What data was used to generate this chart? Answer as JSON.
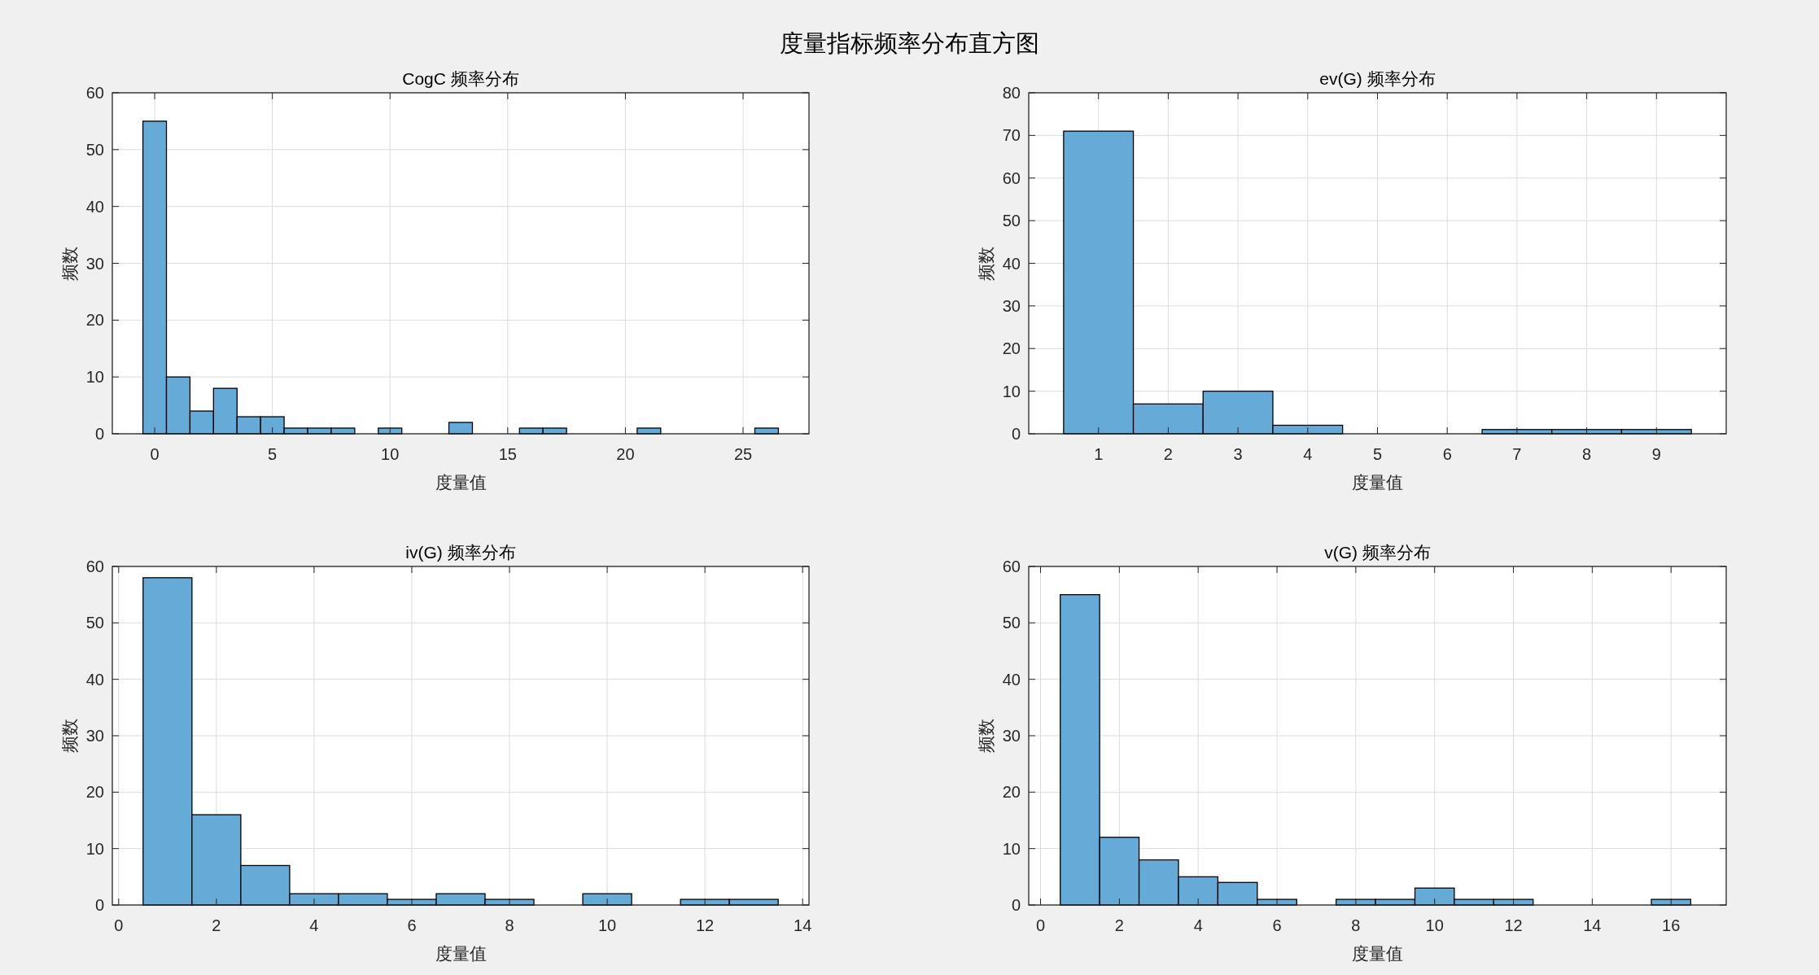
{
  "chart_data": [
    {
      "type": "histogram",
      "title": "CogC 频率分布",
      "xlabel": "度量值",
      "ylabel": "频数",
      "annotations": [
        "度量指标频率分布直方图"
      ],
      "color": "#66aad7",
      "grid": true,
      "bins": [
        -0.5,
        0.5,
        1.5,
        2.5,
        3.5,
        4.5,
        5.5,
        6.5,
        7.5,
        8.5,
        9.5,
        10.5,
        11.5,
        12.5,
        13.5,
        14.5,
        15.5,
        16.5,
        17.5,
        18.5,
        19.5,
        20.5,
        21.5,
        22.5,
        23.5,
        24.5,
        25.5,
        26.5
      ],
      "values": [
        55,
        10,
        4,
        8,
        3,
        3,
        1,
        1,
        1,
        0,
        1,
        0,
        0,
        2,
        0,
        0,
        1,
        1,
        0,
        0,
        0,
        1,
        0,
        0,
        0,
        0,
        1
      ],
      "xlim": [
        -1.8,
        27.8
      ],
      "xticks": [
        0,
        5,
        10,
        15,
        20,
        25
      ],
      "ylim": [
        0,
        60
      ],
      "yticks": [
        0,
        10,
        20,
        30,
        40,
        50,
        60
      ]
    },
    {
      "type": "histogram",
      "title": "ev(G) 频率分布",
      "xlabel": "度量值",
      "ylabel": "频数",
      "color": "#66aad7",
      "grid": true,
      "bins": [
        0.5,
        1.5,
        2.5,
        3.5,
        4.5,
        5.5,
        6.5,
        7.5,
        8.5,
        9.5
      ],
      "values": [
        71,
        7,
        10,
        2,
        0,
        0,
        1,
        1,
        1
      ],
      "xlim": [
        0,
        10
      ],
      "xticks": [
        1,
        2,
        3,
        4,
        5,
        6,
        7,
        8,
        9
      ],
      "ylim": [
        0,
        80
      ],
      "yticks": [
        0,
        10,
        20,
        30,
        40,
        50,
        60,
        70,
        80
      ]
    },
    {
      "type": "histogram",
      "title": "iv(G) 频率分布",
      "xlabel": "度量值",
      "ylabel": "频数",
      "color": "#66aad7",
      "grid": true,
      "bins": [
        0.5,
        1.5,
        2.5,
        3.5,
        4.5,
        5.5,
        6.5,
        7.5,
        8.5,
        9.5,
        10.5,
        11.5,
        12.5,
        13.5
      ],
      "values": [
        58,
        16,
        7,
        2,
        2,
        1,
        2,
        1,
        0,
        2,
        0,
        1,
        1
      ],
      "xlim": [
        -0.13,
        14.13
      ],
      "xticks": [
        0,
        2,
        4,
        6,
        8,
        10,
        12,
        14
      ],
      "ylim": [
        0,
        60
      ],
      "yticks": [
        0,
        10,
        20,
        30,
        40,
        50,
        60
      ]
    },
    {
      "type": "histogram",
      "title": "v(G) 频率分布",
      "xlabel": "度量值",
      "ylabel": "频数",
      "color": "#66aad7",
      "grid": true,
      "bins": [
        0.5,
        1.5,
        2.5,
        3.5,
        4.5,
        5.5,
        6.5,
        7.5,
        8.5,
        9.5,
        10.5,
        11.5,
        12.5,
        13.5,
        14.5,
        15.5,
        16.5
      ],
      "values": [
        55,
        12,
        8,
        5,
        4,
        1,
        0,
        1,
        1,
        3,
        1,
        1,
        0,
        0,
        0,
        1
      ],
      "xlim": [
        -0.3,
        17.4
      ],
      "xticks": [
        0,
        2,
        4,
        6,
        8,
        10,
        12,
        14,
        16
      ],
      "ylim": [
        0,
        60
      ],
      "yticks": [
        0,
        10,
        20,
        30,
        40,
        50,
        60
      ]
    }
  ]
}
